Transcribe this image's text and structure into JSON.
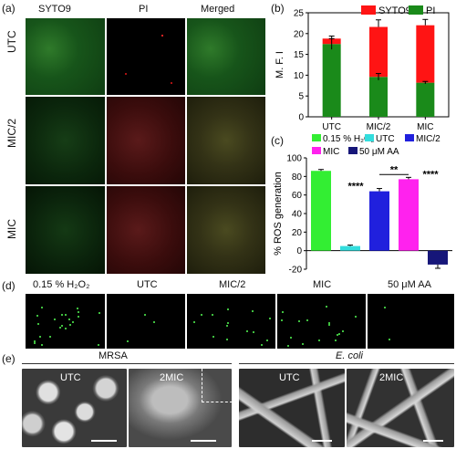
{
  "panels": {
    "a": "(a)",
    "b": "(b)",
    "c": "(c)",
    "d": "(d)",
    "e": "(e)"
  },
  "micro_a": {
    "columns": [
      "SYTO9",
      "PI",
      "Merged"
    ],
    "rows": [
      "UTC",
      "MIC/2",
      "MIC"
    ]
  },
  "micro_d": {
    "labels": [
      "0.15 % H₂O₂",
      "UTC",
      "MIC/2",
      "MIC",
      "50 μM AA"
    ]
  },
  "sem_e": {
    "group_mrsa": "MRSA",
    "group_ecoli": "E. coli",
    "labels": [
      "UTC",
      "2MIC",
      "UTC",
      "2MIC"
    ]
  },
  "chart_data": [
    {
      "type": "bar",
      "stacked": true,
      "categories": [
        "UTC",
        "MIC/2",
        "MIC"
      ],
      "ylabel": "M. F. I",
      "ylim": [
        0,
        25
      ],
      "yticks": [
        0,
        5,
        10,
        15,
        20,
        25
      ],
      "legend_position": "top-right",
      "series": [
        {
          "name": "PI",
          "color": "#1a8a1a",
          "values": [
            17.5,
            9.6,
            8.2
          ]
        },
        {
          "name": "SYTO9",
          "color": "#ff1414",
          "values": [
            1.3,
            12.0,
            13.8
          ]
        }
      ],
      "errors_total": [
        0.6,
        1.7,
        1.4
      ],
      "errors_base": [
        1.3,
        0.8,
        0.3
      ]
    },
    {
      "type": "bar",
      "categories": [
        "0.15 % H₂O₂",
        "UTC",
        "MIC/2",
        "MIC",
        "50 μM AA"
      ],
      "values": [
        86,
        5,
        64,
        77,
        -15
      ],
      "errors": [
        1.5,
        1.0,
        3.0,
        2.0,
        4.0
      ],
      "colors": [
        "#33ee33",
        "#33dddd",
        "#2020dd",
        "#ff22ee",
        "#161679"
      ],
      "ylabel": "% ROS generation",
      "ylim": [
        -20,
        100
      ],
      "yticks": [
        -20,
        0,
        20,
        40,
        60,
        80,
        100
      ],
      "legend_position": "top",
      "legend": [
        "0.15 % H₂O₂",
        "UTC",
        "MIC/2",
        "MIC",
        "50 μM AA"
      ],
      "annotations": [
        {
          "text": "****",
          "category": "MIC/2"
        },
        {
          "text": "****",
          "category": "MIC"
        },
        {
          "text": "**",
          "between": [
            "MIC/2",
            "MIC"
          ]
        }
      ]
    }
  ]
}
